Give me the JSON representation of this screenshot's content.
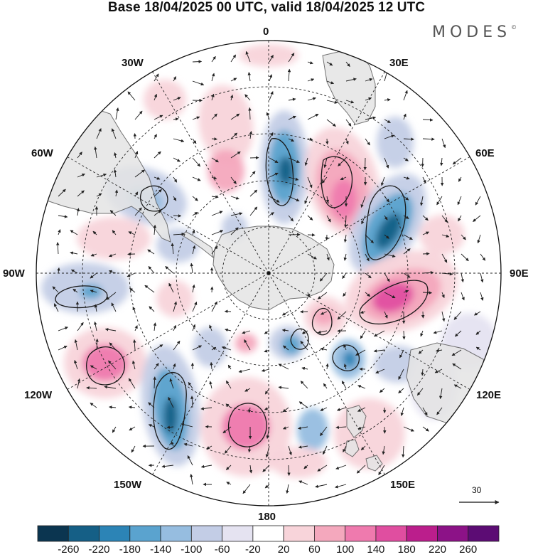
{
  "title": "Base 18/04/2025 00 UTC, valid 18/04/2025 12 UTC",
  "brand": "MODES",
  "brand_mark": "©",
  "longitude_labels": {
    "lon_0": "0",
    "lon_30e": "30E",
    "lon_60e": "60E",
    "lon_90e": "90E",
    "lon_120e": "120E",
    "lon_150e": "150E",
    "lon_180": "180",
    "lon_150w": "150W",
    "lon_120w": "120W",
    "lon_90w": "90W",
    "lon_60w": "60W",
    "lon_30w": "30W"
  },
  "reference_vector_label": "30",
  "colorbar": {
    "ticks": [
      "-260",
      "-220",
      "-180",
      "-140",
      "-100",
      "-60",
      "-20",
      "20",
      "60",
      "100",
      "140",
      "180",
      "220",
      "260"
    ],
    "colors": [
      "#0b3550",
      "#155f86",
      "#2c84b6",
      "#5aa3cf",
      "#96bde0",
      "#c3cde6",
      "#e5e3f1",
      "#ffffff",
      "#f8d4da",
      "#f4a8bd",
      "#ef7aae",
      "#e04ea0",
      "#bb1e8c",
      "#8c1287",
      "#5c0c74"
    ]
  },
  "colors": {
    "land": "#e4e4e4",
    "coast": "#5a5a5a",
    "grid": "#222222"
  }
}
